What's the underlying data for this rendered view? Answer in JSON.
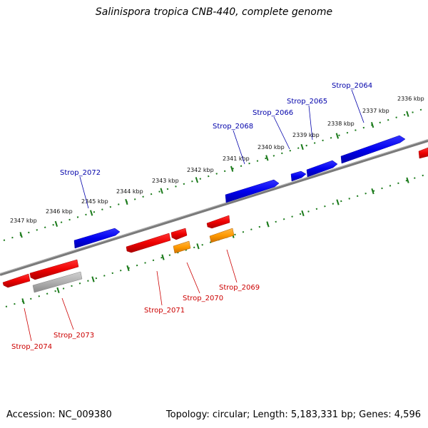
{
  "title": "Salinispora tropica CNB-440, complete genome",
  "footer": {
    "accession": "Accession: NC_009380",
    "summary": "Topology: circular; Length: 5,183,331 bp; Genes: 4,596"
  },
  "colors": {
    "backbone": "#808080",
    "tick": "#1a7a1a",
    "forward_gene": "#0000ee",
    "reverse_gene": "#ee0000",
    "orange_gene": "#ff9900",
    "gray_gene": "#b0b0b0",
    "forward_label": "#0000aa",
    "reverse_label": "#cc0000"
  },
  "scale_labels": [
    "2336 kbp",
    "2337 kbp",
    "2338 kbp",
    "2339 kbp",
    "2340 kbp",
    "2341 kbp",
    "2342 kbp",
    "2343 kbp",
    "2344 kbp",
    "2345 kbp",
    "2346 kbp",
    "2347 kbp"
  ],
  "forward_genes": [
    {
      "name": "Strop_2064"
    },
    {
      "name": "Strop_2065"
    },
    {
      "name": "Strop_2066"
    },
    {
      "name": "Strop_2068"
    },
    {
      "name": "Strop_2072"
    }
  ],
  "reverse_genes": [
    {
      "name": "Strop_2069"
    },
    {
      "name": "Strop_2070"
    },
    {
      "name": "Strop_2071"
    },
    {
      "name": "Strop_2073"
    },
    {
      "name": "Strop_2074"
    }
  ]
}
